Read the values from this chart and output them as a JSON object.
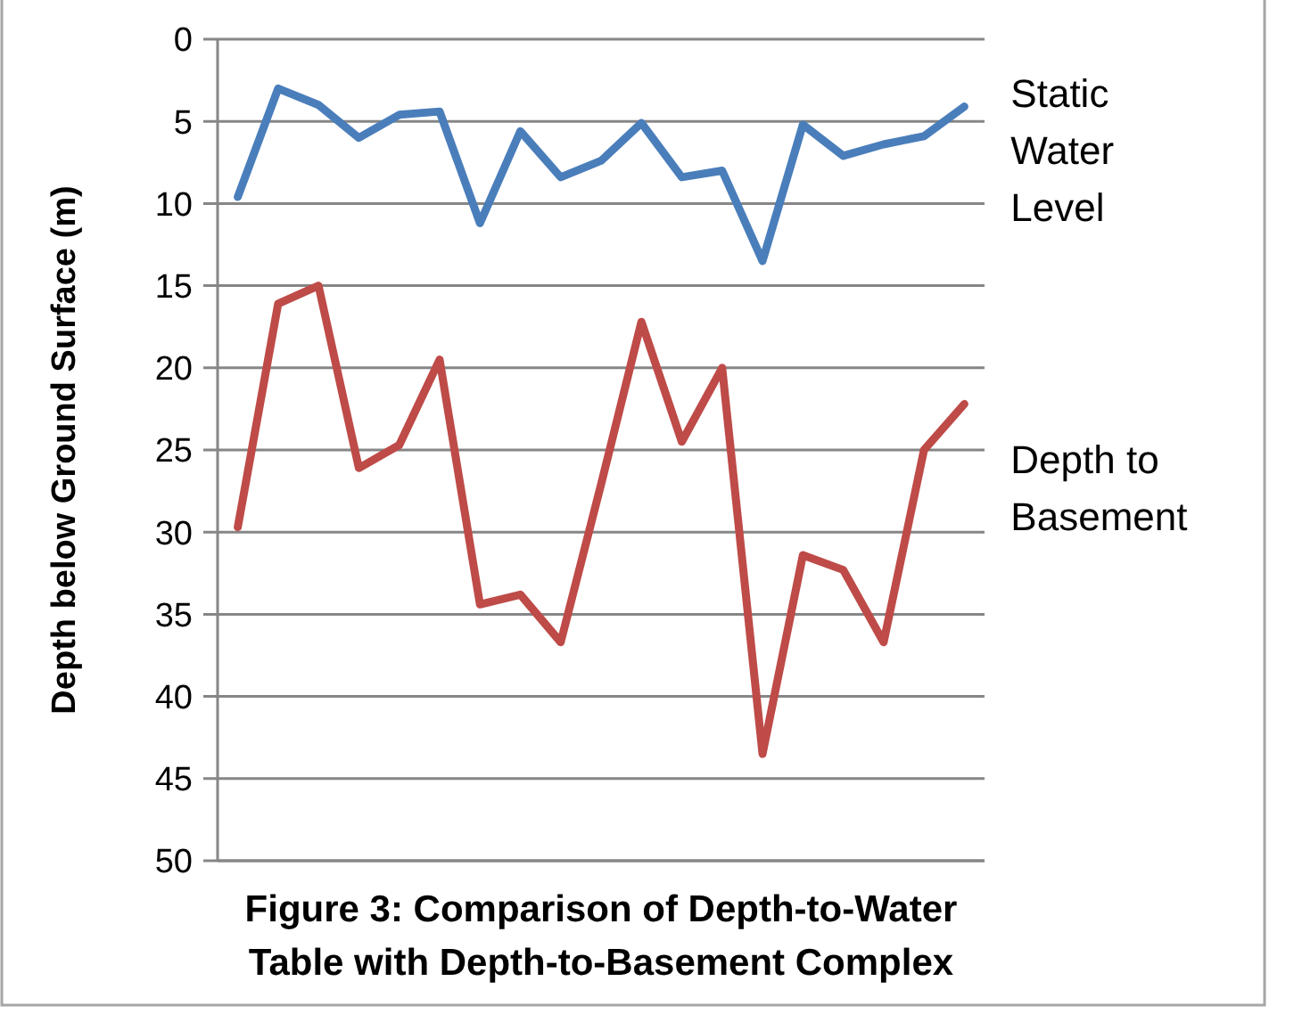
{
  "chart_data": {
    "type": "line",
    "title": "Figure 3: Comparison of Depth-to-Water Table with Depth-to-Basement Complex",
    "ylabel": "Depth below Ground Surface (m)",
    "categories": [
      null,
      null,
      null,
      null,
      null,
      null,
      null,
      null,
      null,
      null,
      null,
      null,
      null,
      null,
      null,
      null,
      null,
      null,
      null
    ],
    "series": [
      {
        "name": "Static Water Level",
        "color": "#4a7ebb",
        "values": [
          9.6,
          3.0,
          4.0,
          6.0,
          4.6,
          4.4,
          11.2,
          5.6,
          8.4,
          7.4,
          5.1,
          8.4,
          8.0,
          13.5,
          5.2,
          7.1,
          6.4,
          5.9,
          4.1
        ]
      },
      {
        "name": "Depth to Basement",
        "color": "#be4b48",
        "values": [
          29.7,
          16.1,
          15.0,
          26.1,
          24.7,
          19.5,
          34.4,
          33.8,
          36.7,
          27.1,
          17.2,
          24.5,
          20.0,
          43.5,
          31.4,
          32.3,
          36.7,
          25.0,
          22.2
        ]
      }
    ],
    "ylim": [
      50,
      0
    ],
    "yticks": [
      0,
      5,
      10,
      15,
      20,
      25,
      30,
      35,
      40,
      45,
      50
    ],
    "grid": "y",
    "marker": "none",
    "line_style": "solid",
    "tick_labels": "y"
  }
}
